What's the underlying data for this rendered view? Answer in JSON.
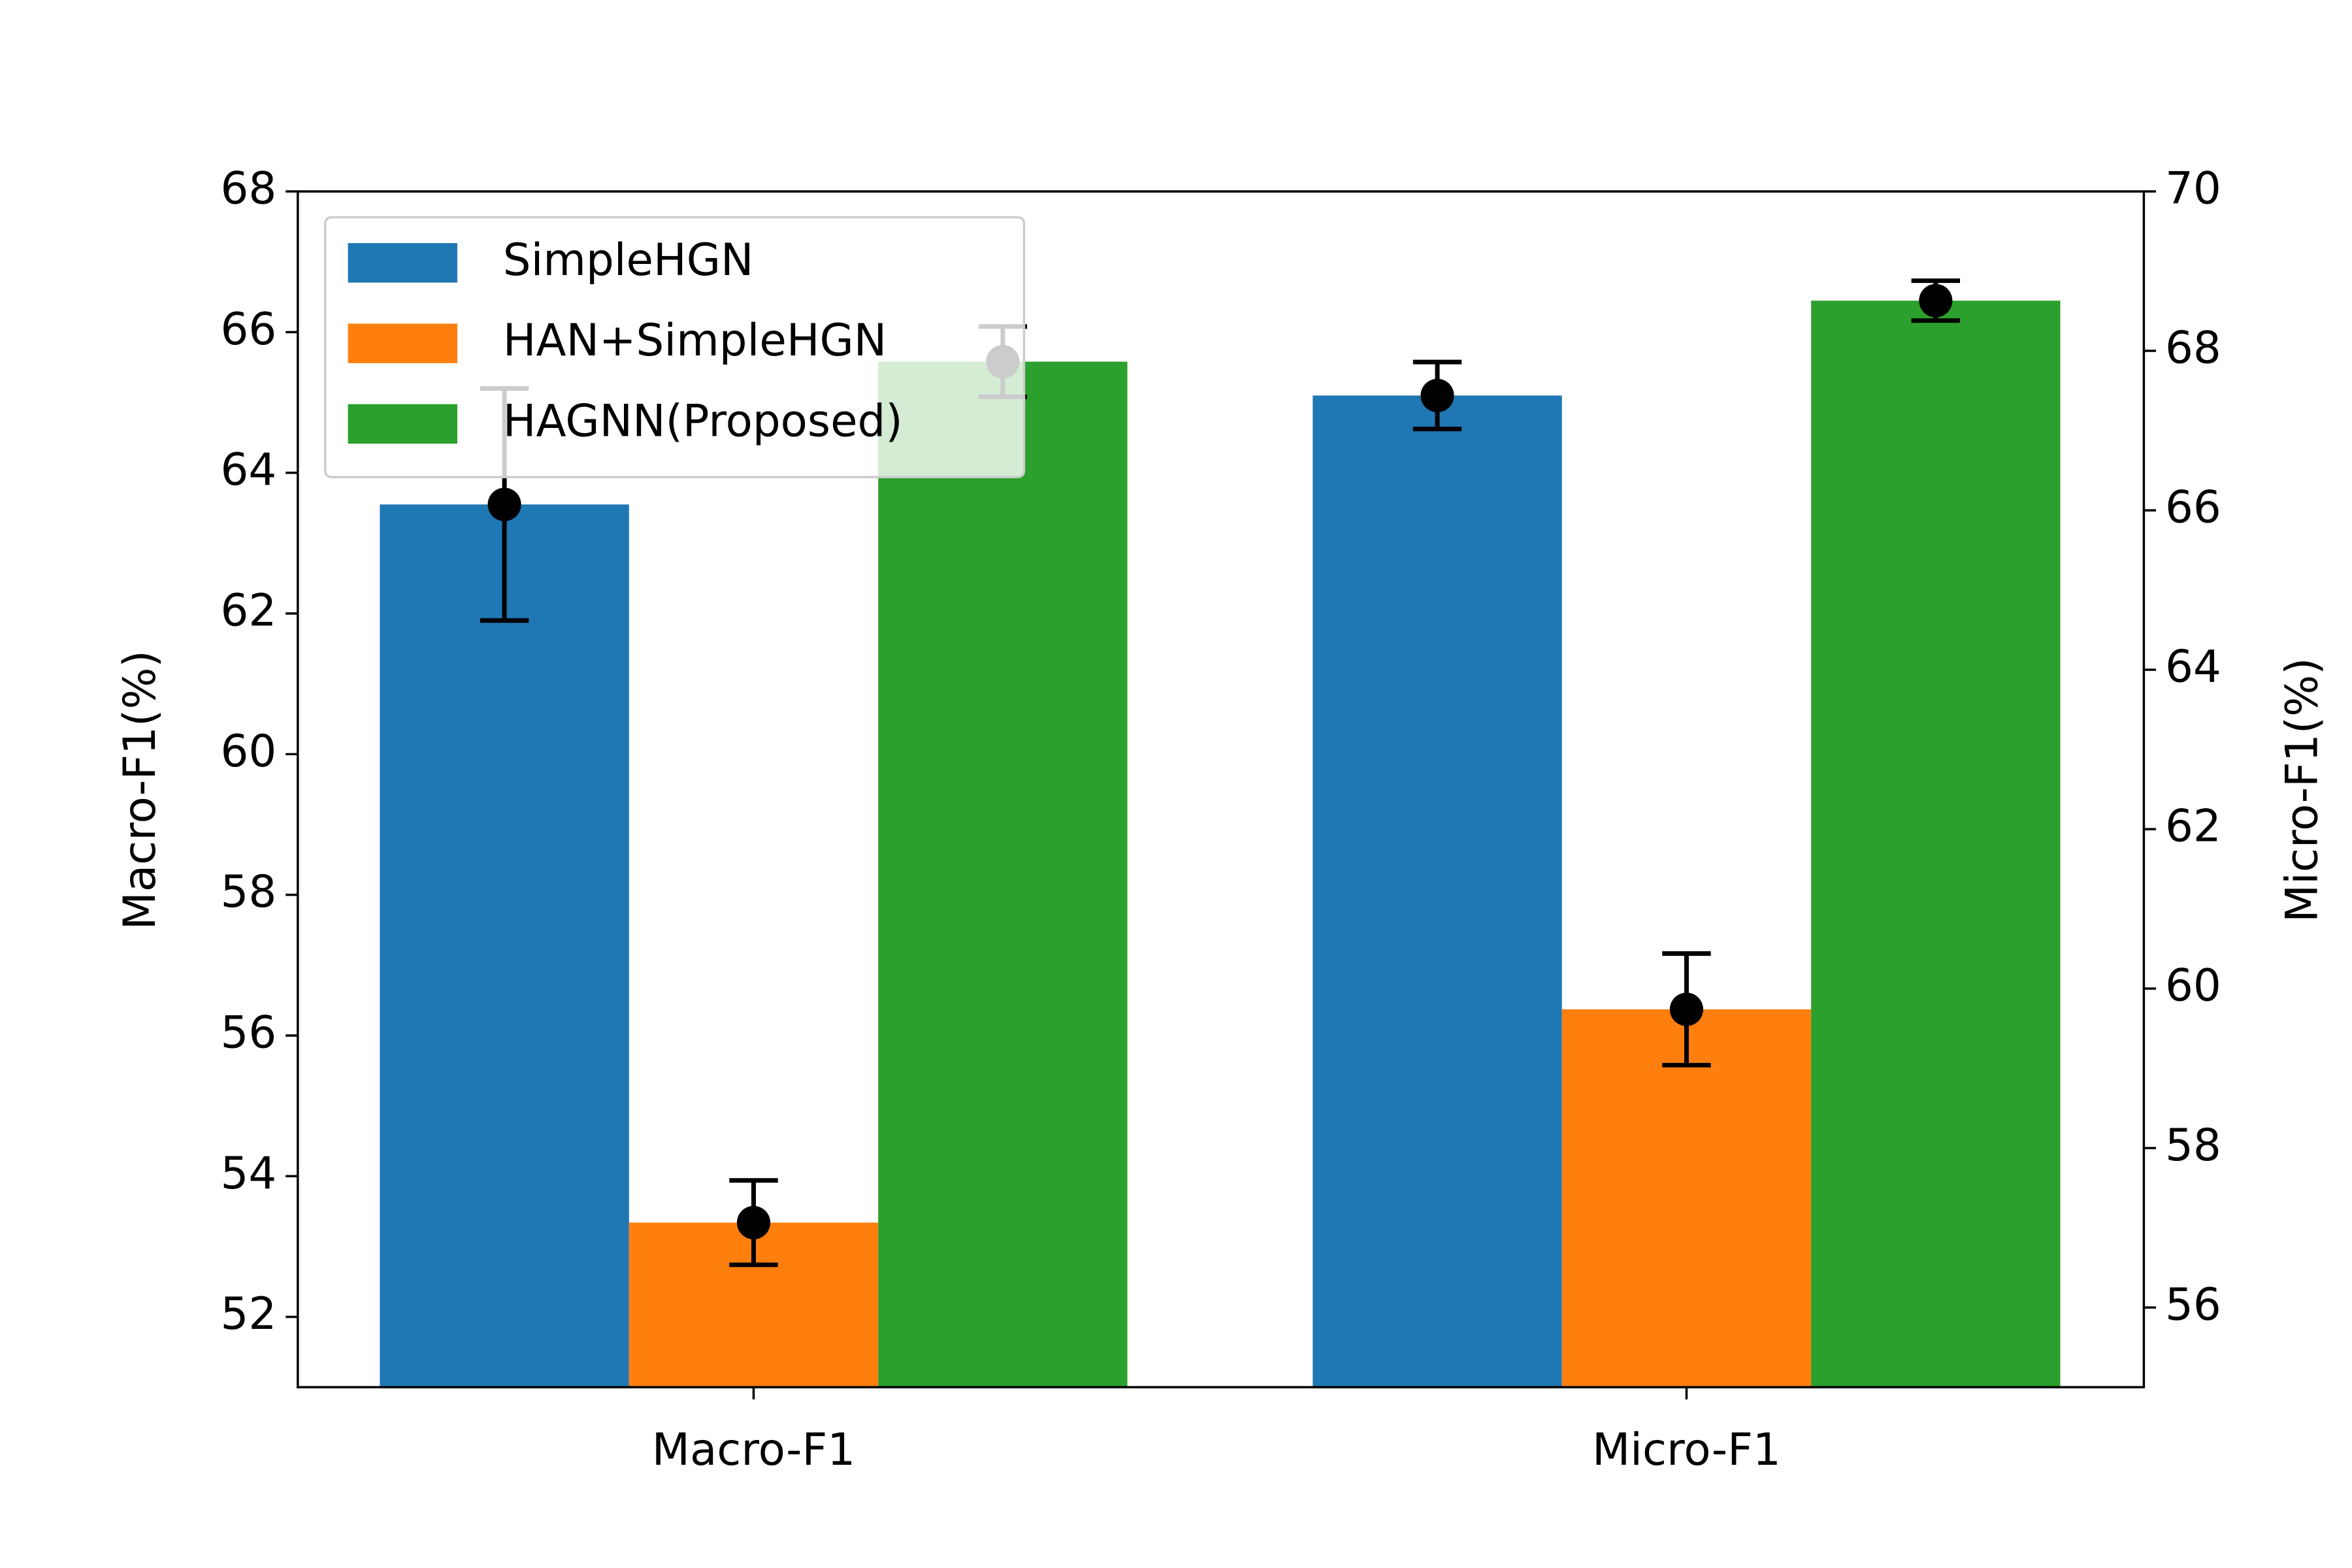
{
  "chart_data": {
    "type": "bar",
    "categories": [
      "Macro-F1",
      "Micro-F1"
    ],
    "category_axes": [
      "y",
      "y2"
    ],
    "ylabel": "Macro-F1(%)",
    "y2label": "Micro-F1(%)",
    "ylim": [
      51,
      68
    ],
    "yticks": [
      52,
      54,
      56,
      58,
      60,
      62,
      64,
      66,
      68
    ],
    "y2lim": [
      55,
      70
    ],
    "y2ticks": [
      56,
      58,
      60,
      62,
      64,
      66,
      68,
      70
    ],
    "legend": "upper left",
    "series": [
      {
        "name": "SimpleHGN",
        "color": "#1f77b4",
        "values": [
          63.55,
          67.44
        ],
        "errors": [
          1.65,
          0.42
        ]
      },
      {
        "name": "HAN+SimpleHGN",
        "color": "#ff7f0e",
        "values": [
          53.34,
          59.74
        ],
        "errors": [
          0.6,
          0.7
        ]
      },
      {
        "name": "HAGNN(Proposed)",
        "color": "#2ca02c",
        "values": [
          65.58,
          68.63
        ],
        "errors": [
          0.5,
          0.25
        ]
      }
    ]
  }
}
